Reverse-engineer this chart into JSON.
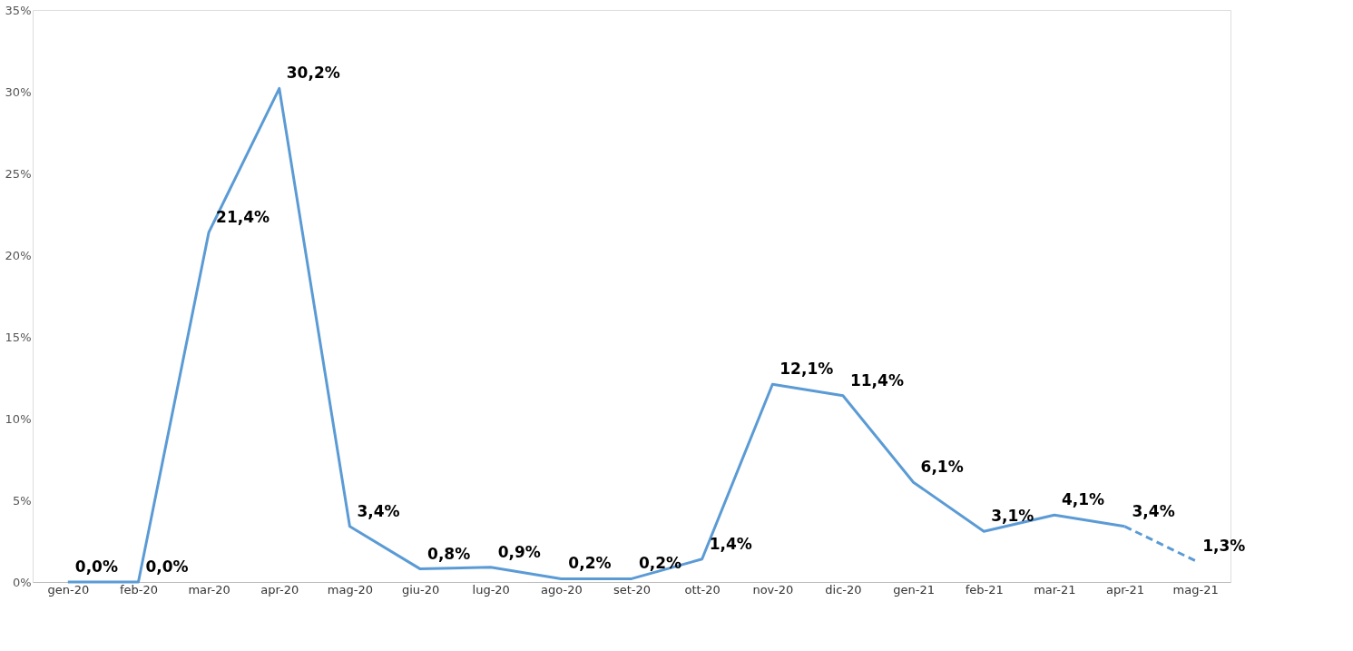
{
  "chart_data": {
    "type": "line",
    "categories": [
      "gen-20",
      "feb-20",
      "mar-20",
      "apr-20",
      "mag-20",
      "giu-20",
      "lug-20",
      "ago-20",
      "set-20",
      "ott-20",
      "nov-20",
      "dic-20",
      "gen-21",
      "feb-21",
      "mar-21",
      "apr-21",
      "mag-21"
    ],
    "series": [
      {
        "color": "#5b9bd5",
        "line_style": "solid",
        "values": [
          0.0,
          0.0,
          21.4,
          30.2,
          3.4,
          0.8,
          0.9,
          0.2,
          0.2,
          1.4,
          12.1,
          11.4,
          6.1,
          3.1,
          4.1,
          3.4,
          null
        ],
        "value_labels": [
          "0,0%",
          "0,0%",
          "21,4%",
          "30,2%",
          "3,4%",
          "0,8%",
          "0,9%",
          "0,2%",
          "0,2%",
          "1,4%",
          "12,1%",
          "11,4%",
          "6,1%",
          "3,1%",
          "4,1%",
          "3,4%",
          null
        ]
      },
      {
        "color": "#5b9bd5",
        "line_style": "dashed",
        "values": [
          null,
          null,
          null,
          null,
          null,
          null,
          null,
          null,
          null,
          null,
          null,
          null,
          null,
          null,
          null,
          3.4,
          1.3
        ],
        "value_labels": [
          null,
          null,
          null,
          null,
          null,
          null,
          null,
          null,
          null,
          null,
          null,
          null,
          null,
          null,
          null,
          null,
          "1,3%"
        ]
      }
    ],
    "ylim": [
      0,
      35
    ],
    "yticks": [
      {
        "value": 0,
        "label": "0%"
      },
      {
        "value": 5,
        "label": "5%"
      },
      {
        "value": 10,
        "label": "10%"
      },
      {
        "value": 15,
        "label": "15%"
      },
      {
        "value": 20,
        "label": "20%"
      },
      {
        "value": 25,
        "label": "25%"
      },
      {
        "value": 30,
        "label": "30%"
      },
      {
        "value": 35,
        "label": "35%"
      }
    ]
  }
}
